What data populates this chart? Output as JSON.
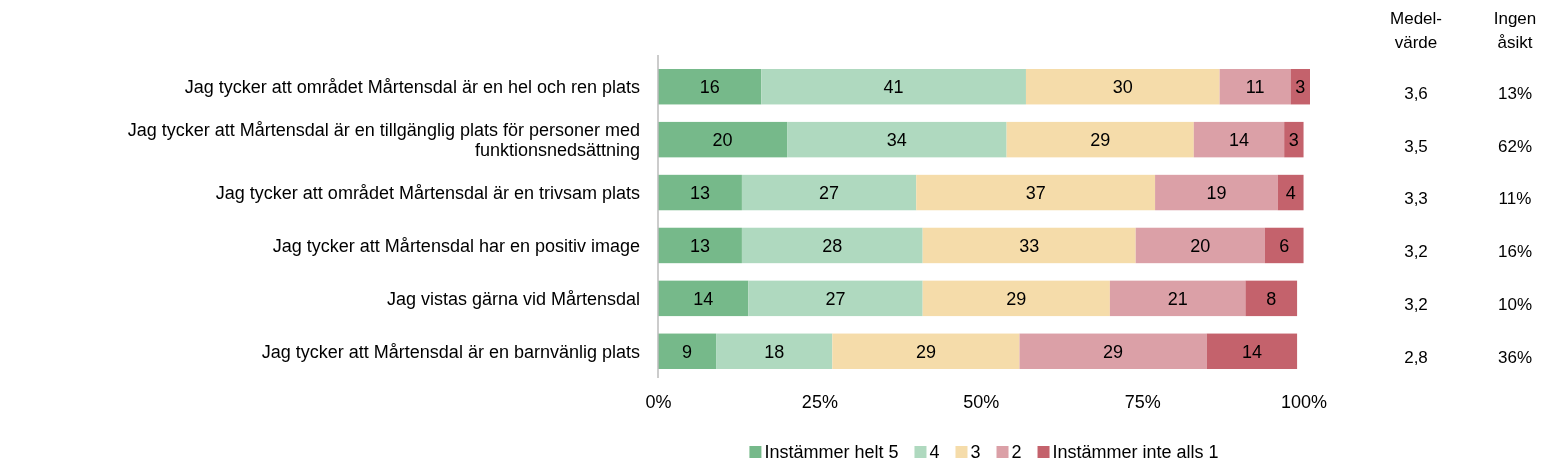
{
  "chart_data": {
    "type": "bar",
    "orientation": "horizontal",
    "stacked": true,
    "data_labels": true,
    "legend": "bottom",
    "grid": false,
    "categories": [
      "Jag tycker att området Mårtensdal är en hel och ren plats",
      "Jag tycker att Mårtensdal är en tillgänglig plats för personer med funktionsnedsättning",
      "Jag tycker att området Mårtensdal är en trivsam plats",
      "Jag tycker att Mårtensdal har en positiv image",
      "Jag vistas gärna vid Mårtensdal",
      "Jag tycker att Mårtensdal är en barnvänlig plats"
    ],
    "series": [
      {
        "name": "Instämmer helt 5",
        "color": "#76b98a",
        "values": [
          16,
          20,
          13,
          13,
          14,
          9
        ]
      },
      {
        "name": "4",
        "color": "#afd9bf",
        "values": [
          41,
          34,
          27,
          28,
          27,
          18
        ]
      },
      {
        "name": "3",
        "color": "#f5dcaa",
        "values": [
          30,
          29,
          37,
          33,
          29,
          29
        ]
      },
      {
        "name": "2",
        "color": "#dba0a7",
        "values": [
          11,
          14,
          19,
          20,
          21,
          29
        ]
      },
      {
        "name": "Instämmer inte alls 1",
        "color": "#c4626c",
        "values": [
          3,
          3,
          4,
          6,
          8,
          14
        ]
      }
    ],
    "xlim": [
      0,
      101
    ],
    "xticks": [
      {
        "value": 0,
        "label": "0%"
      },
      {
        "value": 25,
        "label": "25%"
      },
      {
        "value": 50,
        "label": "50%"
      },
      {
        "value": 75,
        "label": "75%"
      },
      {
        "value": 100,
        "label": "100%"
      }
    ],
    "annotations": [
      "Medel-\nvärde",
      "Ingen\nåsikt",
      "3,6",
      "13%",
      "3,5",
      "62%",
      "3,3",
      "11%",
      "3,2",
      "16%",
      "3,2",
      "10%",
      "2,8",
      "36%"
    ]
  }
}
